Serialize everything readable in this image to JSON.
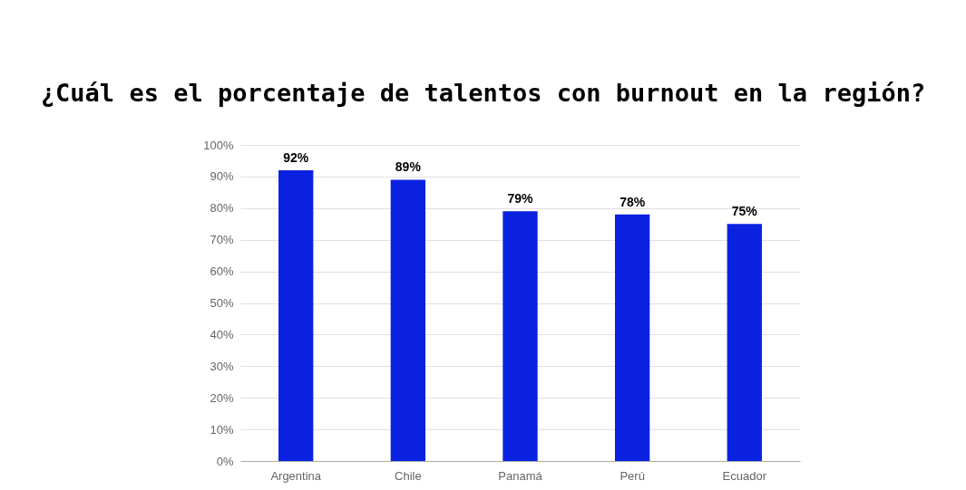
{
  "chart_data": {
    "type": "bar",
    "title": "¿Cuál es el porcentaje de talentos con burnout en la región?",
    "categories": [
      "Argentina",
      "Chile",
      "Panamá",
      "Perú",
      "Ecuador"
    ],
    "values": [
      92,
      89,
      79,
      78,
      75
    ],
    "value_labels": [
      "92%",
      "89%",
      "79%",
      "78%",
      "75%"
    ],
    "color": "#0a22e0",
    "ylim": [
      0,
      100
    ],
    "yticks": [
      {
        "value": 0,
        "label": "0%"
      },
      {
        "value": 10,
        "label": "10%"
      },
      {
        "value": 20,
        "label": "20%"
      },
      {
        "value": 30,
        "label": "30%"
      },
      {
        "value": 40,
        "label": "40%"
      },
      {
        "value": 50,
        "label": "50%"
      },
      {
        "value": 60,
        "label": "60%"
      },
      {
        "value": 70,
        "label": "70%"
      },
      {
        "value": 80,
        "label": "80%"
      },
      {
        "value": 90,
        "label": "90%"
      },
      {
        "value": 100,
        "label": "100%"
      }
    ],
    "grid": "y"
  }
}
